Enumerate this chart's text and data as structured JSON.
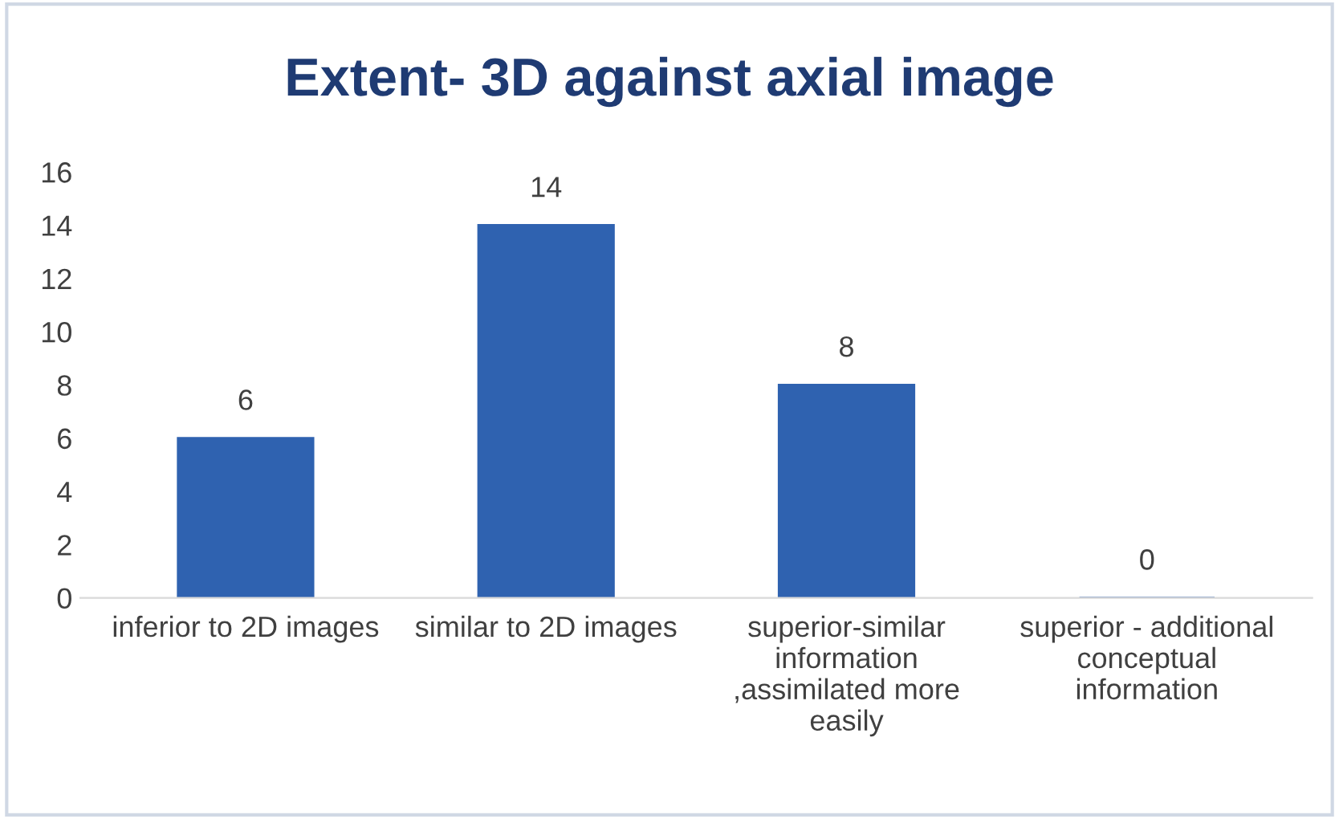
{
  "chart_data": {
    "type": "bar",
    "title": "Extent- 3D against axial image",
    "categories": [
      "inferior to 2D images",
      "similar to 2D images",
      "superior-similar\ninformation\n,assimilated more\neasily",
      "superior - additional\nconceptual\ninformation"
    ],
    "values": [
      6,
      14,
      8,
      0
    ],
    "color": "#2f62b0",
    "ylim": [
      0,
      16
    ],
    "yticks": [
      0,
      2,
      4,
      6,
      8,
      10,
      12,
      14,
      16
    ],
    "grid": false,
    "data_labels": true
  }
}
